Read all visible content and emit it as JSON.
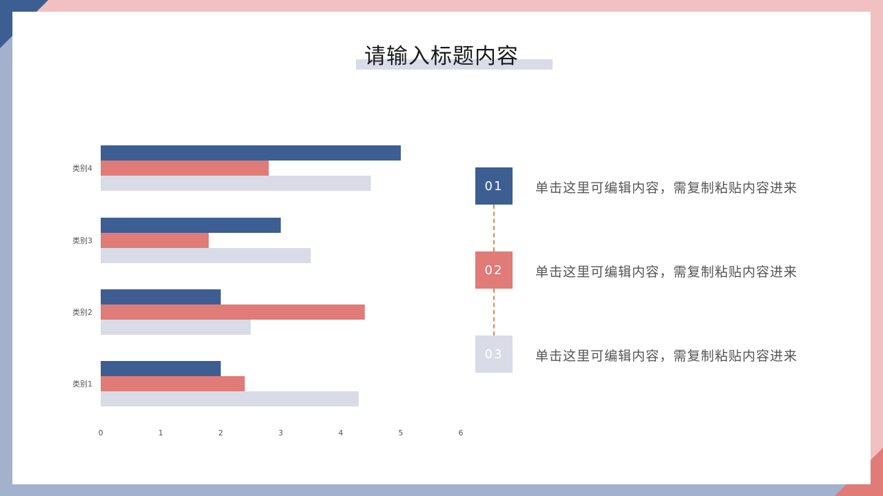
{
  "title": "请输入标题内容",
  "colors": {
    "blue": "#3d5e92",
    "red": "#e07b78",
    "grey": "#d9dce6",
    "frame_pink": "#f1c0c1",
    "frame_blue": "#a3b1cd",
    "connector": "#d98a47"
  },
  "chart_data": {
    "type": "bar",
    "orientation": "horizontal",
    "categories": [
      "类别1",
      "类别2",
      "类别3",
      "类别4"
    ],
    "series": [
      {
        "color": "#d9dce6",
        "values": [
          4.3,
          2.5,
          3.5,
          4.5
        ]
      },
      {
        "color": "#e07b78",
        "values": [
          2.4,
          4.4,
          1.8,
          2.8
        ]
      },
      {
        "color": "#3d5e92",
        "values": [
          2.0,
          2.0,
          3.0,
          5.0
        ]
      }
    ],
    "xlim": [
      0,
      6
    ],
    "xticks": [
      "0",
      "1",
      "2",
      "3",
      "4",
      "5",
      "6"
    ],
    "grid": false,
    "legend": "none"
  },
  "steps": [
    {
      "number": "01",
      "color": "#3d5e92",
      "text": "单击这里可编辑内容，需复制粘贴内容进来"
    },
    {
      "number": "02",
      "color": "#e07b78",
      "text": "单击这里可编辑内容，需复制粘贴内容进来"
    },
    {
      "number": "03",
      "color": "#d9dce6",
      "text": "单击这里可编辑内容，需复制粘贴内容进来"
    }
  ]
}
